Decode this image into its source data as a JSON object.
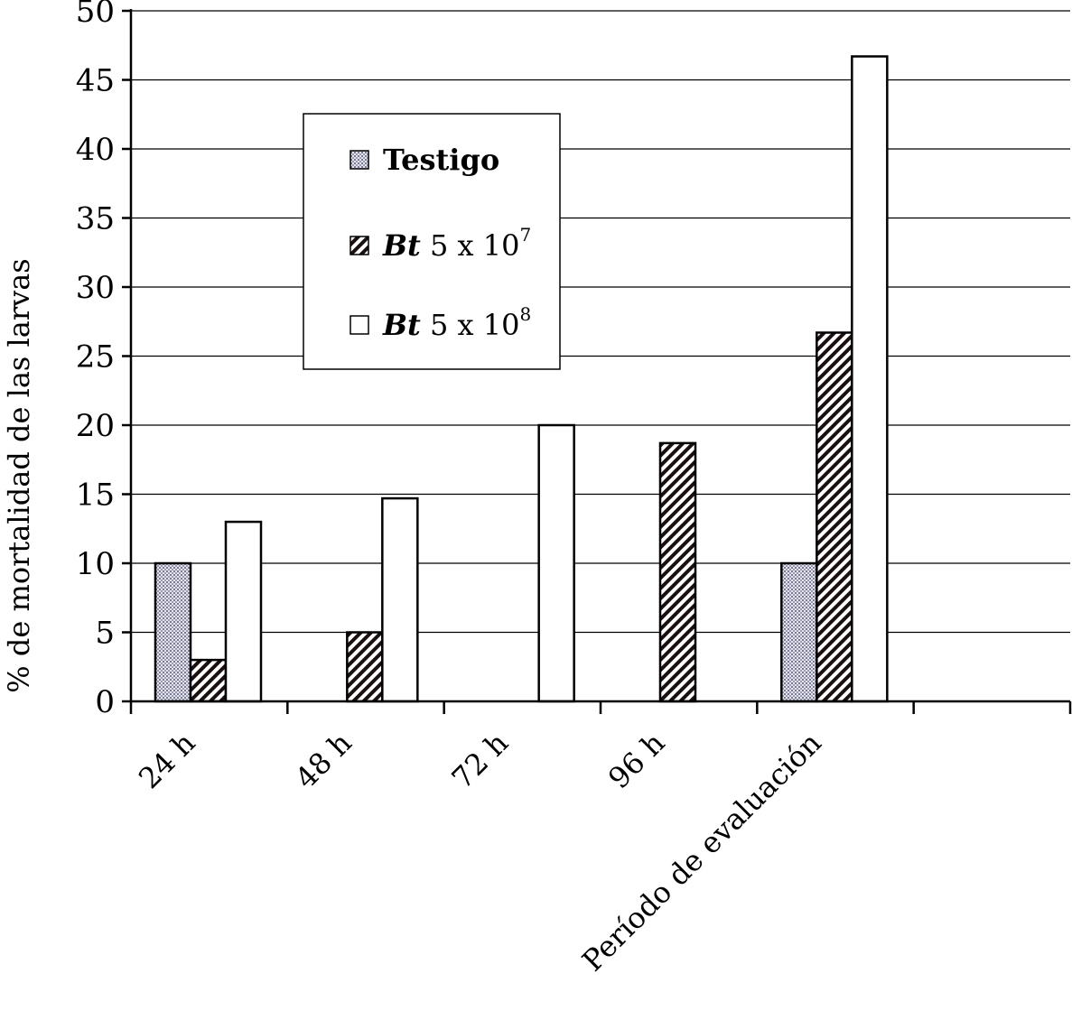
{
  "chart_data": {
    "type": "bar",
    "title": "",
    "xlabel": "Período de evaluación",
    "ylabel": "% de mortalidad de las larvas",
    "ylim": [
      0,
      50
    ],
    "yticks": [
      0,
      5,
      10,
      15,
      20,
      25,
      30,
      35,
      40,
      45,
      50
    ],
    "grid": true,
    "legend_position": "upper-left-center",
    "category_labels": [
      "24 h",
      "48 h",
      "72 h",
      "96 h"
    ],
    "categories": [
      "24 h",
      "48 h",
      "72 h",
      "96 h",
      "Período de evaluación",
      ""
    ],
    "series": [
      {
        "name": "Testigo",
        "legend_prefix": "",
        "legend_base": "Testigo",
        "legend_exp": "",
        "pattern": "dots",
        "values": [
          10,
          0,
          0,
          0,
          10,
          0
        ]
      },
      {
        "name": "Bt 5 x 10^7",
        "legend_prefix": "Bt",
        "legend_base": " 5 x 10",
        "legend_exp": "7",
        "pattern": "hatch",
        "values": [
          3,
          5,
          0,
          18.7,
          26.7,
          0
        ]
      },
      {
        "name": "Bt 5 x 10^8",
        "legend_prefix": "Bt",
        "legend_base": " 5 x 10",
        "legend_exp": "8",
        "pattern": "white",
        "values": [
          13,
          14.7,
          20,
          0,
          46.7,
          0
        ]
      }
    ]
  }
}
